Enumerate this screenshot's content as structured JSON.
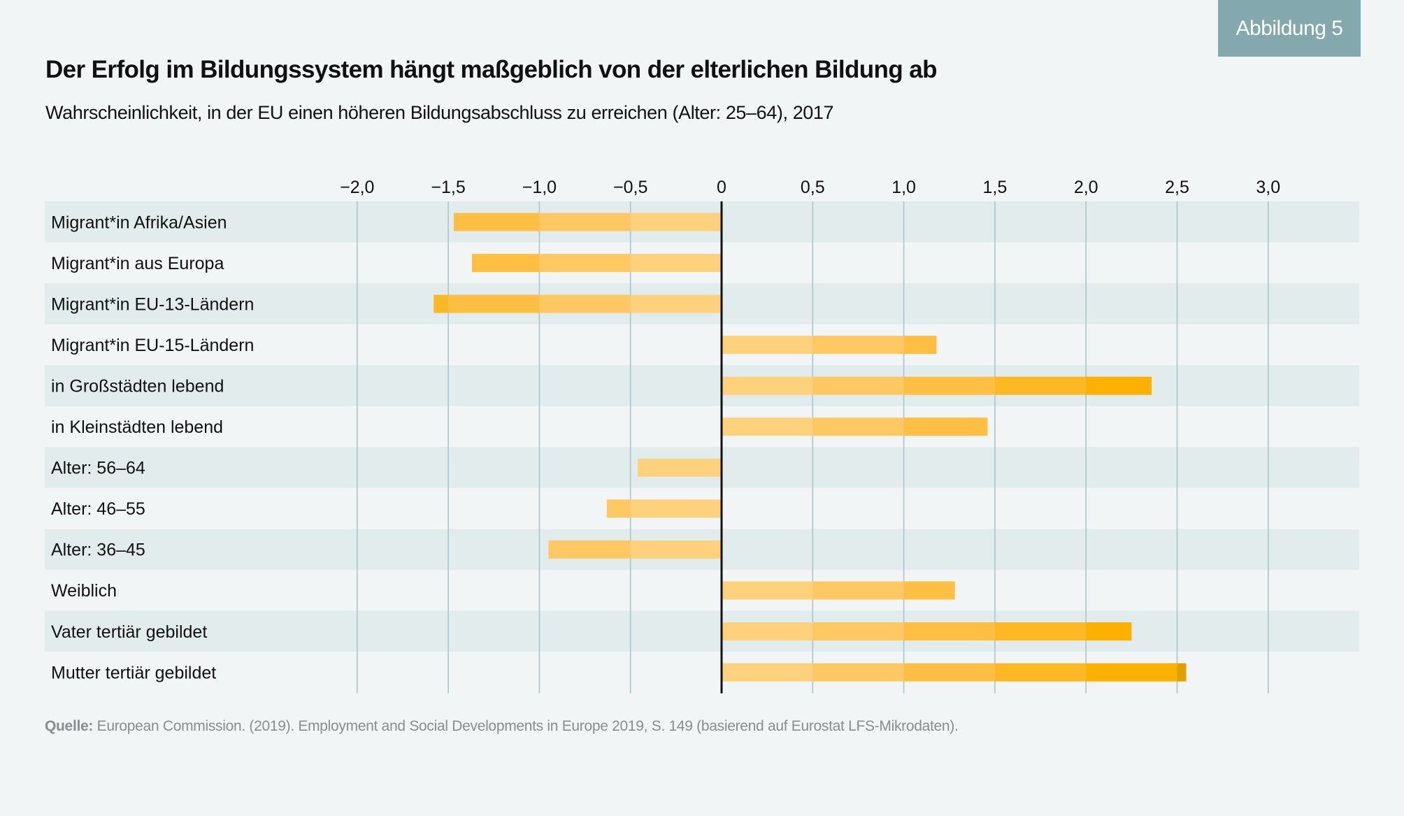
{
  "badge": "Abbildung 5",
  "title": "Der Erfolg im Bildungssystem hängt maßgeblich von der elterlichen Bildung ab",
  "subtitle": "Wahrscheinlichkeit, in der EU einen höheren Bildungsabschluss zu erreichen (Alter: 25–64), 2017",
  "source": {
    "label": "Quelle:",
    "text": " European Commission. (2019). Employment and Social Developments in Europe 2019, S. 149 (basierend auf Eurostat LFS-Mikrodaten)."
  },
  "colors": {
    "background": "#F1F5F6",
    "band": "#E3ECED",
    "gridline": "#A9C6C8",
    "zero_line": "#111111",
    "badge": "#83A9AE",
    "bar_segments": [
      "#FED17D",
      "#FEC962",
      "#FEBF42",
      "#FDB823",
      "#FCB000",
      "#E0A000"
    ]
  },
  "chart_data": {
    "type": "bar",
    "orientation": "horizontal",
    "title": "Der Erfolg im Bildungssystem hängt maßgeblich von der elterlichen Bildung ab",
    "subtitle": "Wahrscheinlichkeit, in der EU einen höheren Bildungsabschluss zu erreichen (Alter: 25–64), 2017",
    "xlabel": "",
    "ylabel": "",
    "xlim": [
      -2.0,
      3.0
    ],
    "x_ticks": [
      -2.0,
      -1.5,
      -1.0,
      -0.5,
      0,
      0.5,
      1.0,
      1.5,
      2.0,
      2.5,
      3.0
    ],
    "x_tick_labels": [
      "−2,0",
      "−1,5",
      "−1,0",
      "−0,5",
      "0",
      "0,5",
      "1,0",
      "1,5",
      "2,0",
      "2,5",
      "3,0"
    ],
    "x_axis_position": "top",
    "grid": true,
    "legend": "none",
    "categories": [
      "Migrant*in Afrika/Asien",
      "Migrant*in aus Europa",
      "Migrant*in EU-13-Ländern",
      "Migrant*in EU-15-Ländern",
      "in Großstädten lebend",
      "in Kleinstädten lebend",
      "Alter: 56–64",
      "Alter: 46–55",
      "Alter: 36–45",
      "Weiblich",
      "Vater tertiär gebildet",
      "Mutter tertiär gebildet"
    ],
    "values": [
      -1.47,
      -1.37,
      -1.58,
      1.18,
      2.36,
      1.46,
      -0.46,
      -0.63,
      -0.95,
      1.28,
      2.25,
      2.55
    ]
  }
}
